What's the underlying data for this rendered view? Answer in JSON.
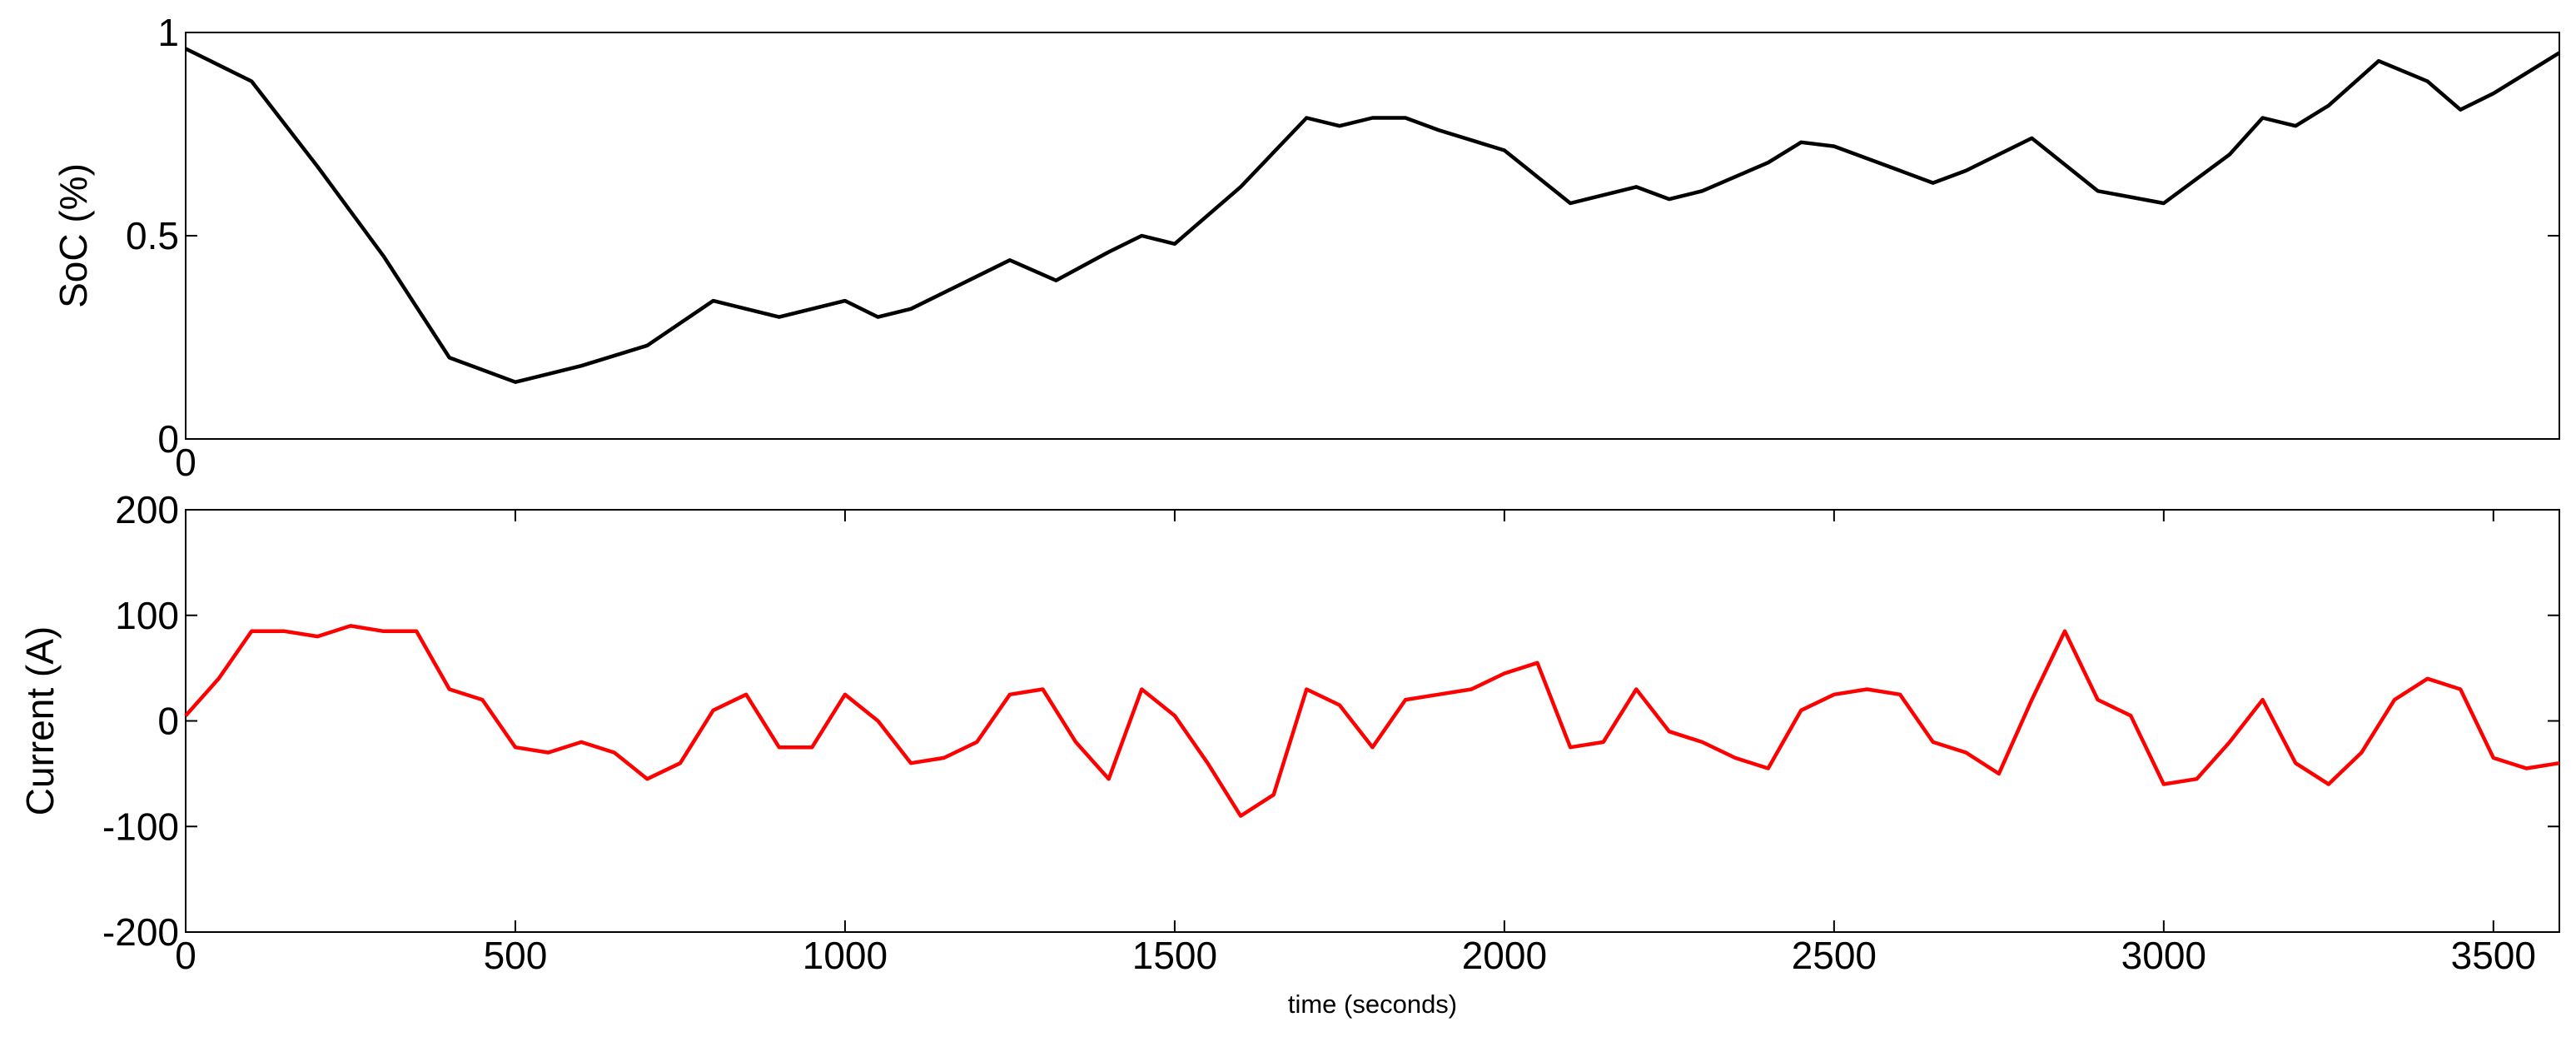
{
  "chart_data": [
    {
      "type": "line",
      "ylabel": "SoC (%)",
      "color": "#000000",
      "x": [
        0,
        100,
        200,
        300,
        400,
        500,
        600,
        700,
        800,
        900,
        1000,
        1050,
        1100,
        1200,
        1250,
        1320,
        1400,
        1450,
        1500,
        1600,
        1700,
        1750,
        1800,
        1850,
        1900,
        2000,
        2100,
        2200,
        2250,
        2300,
        2400,
        2450,
        2500,
        2600,
        2650,
        2700,
        2800,
        2900,
        3000,
        3100,
        3150,
        3200,
        3250,
        3326,
        3400,
        3450,
        3500,
        3600
      ],
      "values": [
        0.96,
        0.88,
        0.67,
        0.45,
        0.2,
        0.14,
        0.18,
        0.23,
        0.34,
        0.3,
        0.34,
        0.3,
        0.32,
        0.4,
        0.44,
        0.39,
        0.46,
        0.5,
        0.48,
        0.62,
        0.79,
        0.77,
        0.79,
        0.79,
        0.76,
        0.71,
        0.58,
        0.62,
        0.59,
        0.61,
        0.68,
        0.73,
        0.72,
        0.66,
        0.63,
        0.66,
        0.74,
        0.61,
        0.58,
        0.7,
        0.79,
        0.77,
        0.82,
        0.93,
        0.88,
        0.81,
        0.85,
        0.95
      ],
      "xlim": [
        0,
        3600
      ],
      "xticks": [
        0
      ],
      "ylim": [
        0,
        1
      ],
      "yticks": [
        0,
        0.5,
        1
      ]
    },
    {
      "type": "line",
      "ylabel": "Current (A)",
      "xlabel": "time (seconds)",
      "color": "#ff0000",
      "x": [
        0,
        50,
        100,
        150,
        200,
        250,
        300,
        350,
        400,
        450,
        500,
        550,
        600,
        650,
        700,
        750,
        800,
        850,
        900,
        950,
        1000,
        1050,
        1100,
        1150,
        1200,
        1250,
        1300,
        1350,
        1400,
        1450,
        1500,
        1550,
        1600,
        1650,
        1700,
        1750,
        1800,
        1850,
        1900,
        1950,
        2000,
        2050,
        2100,
        2150,
        2200,
        2250,
        2300,
        2350,
        2400,
        2450,
        2500,
        2550,
        2600,
        2650,
        2700,
        2750,
        2800,
        2850,
        2900,
        2950,
        3000,
        3050,
        3100,
        3150,
        3200,
        3250,
        3300,
        3350,
        3400,
        3450,
        3500,
        3550,
        3600
      ],
      "values": [
        5,
        40,
        85,
        85,
        80,
        90,
        85,
        85,
        30,
        20,
        -25,
        -30,
        -20,
        -30,
        -55,
        -40,
        10,
        25,
        -25,
        -25,
        25,
        0,
        -40,
        -35,
        -20,
        25,
        30,
        -20,
        -55,
        30,
        5,
        -40,
        -90,
        -70,
        30,
        15,
        -25,
        20,
        25,
        30,
        45,
        55,
        -25,
        -20,
        30,
        -10,
        -20,
        -35,
        -45,
        10,
        25,
        30,
        25,
        -20,
        -30,
        -50,
        20,
        85,
        20,
        5,
        -60,
        -55,
        -20,
        20,
        -40,
        -60,
        -30,
        20,
        40,
        30,
        -35,
        -45,
        -40
      ],
      "xlim": [
        0,
        3600
      ],
      "xticks": [
        0,
        500,
        1000,
        1500,
        2000,
        2500,
        3000,
        3500
      ],
      "ylim": [
        -200,
        200
      ],
      "yticks": [
        -200,
        -100,
        0,
        100,
        200
      ]
    }
  ]
}
